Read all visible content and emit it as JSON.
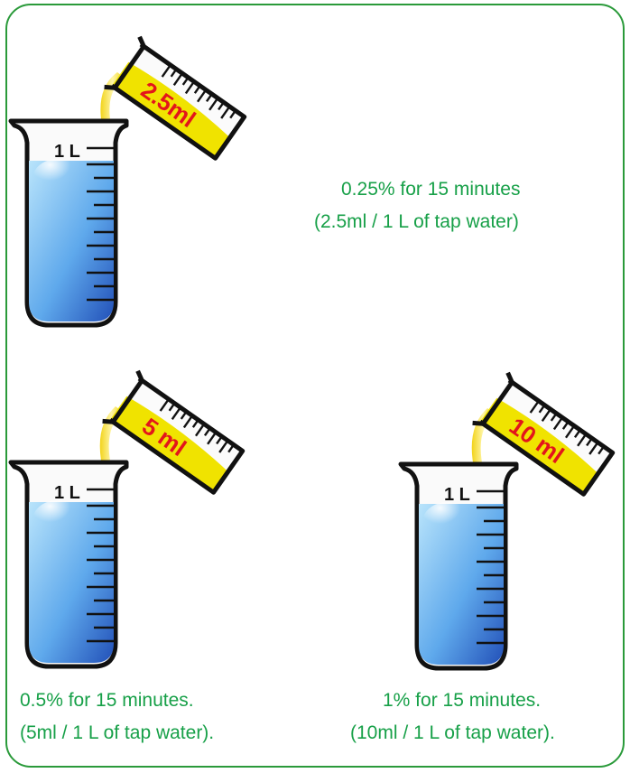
{
  "panels": [
    {
      "id": "panel-1",
      "dose_label": "2.5ml",
      "beaker_label": "1 L",
      "caption_line1": "0.25% for 15 minutes",
      "caption_line2": "(2.5ml / 1 L of tap water)"
    },
    {
      "id": "panel-2",
      "dose_label": "5 ml",
      "beaker_label": "1 L",
      "caption_line1": "0.5% for 15 minutes.",
      "caption_line2": "(5ml / 1 L of tap water)."
    },
    {
      "id": "panel-3",
      "dose_label": "10 ml",
      "beaker_label": "1 L",
      "caption_line1": "1% for 15 minutes.",
      "caption_line2": "(10ml / 1 L of tap water)."
    }
  ],
  "colors": {
    "caption_green": "#17a048",
    "border_green": "#2a9a3a",
    "dose_red": "#e3151b",
    "liquid_yellow": "#f0e300",
    "water_blue": "#4a8fe0"
  }
}
